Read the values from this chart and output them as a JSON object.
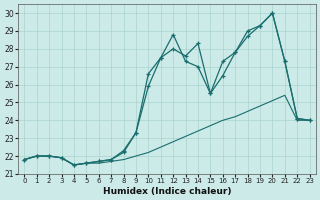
{
  "xlabel": "Humidex (Indice chaleur)",
  "background_color": "#cceae7",
  "grid_color": "#aad4d0",
  "line_color": "#1a6e6e",
  "xlim": [
    -0.5,
    23.5
  ],
  "ylim": [
    21.0,
    30.5
  ],
  "xticks": [
    0,
    1,
    2,
    3,
    4,
    5,
    6,
    7,
    8,
    9,
    10,
    11,
    12,
    13,
    14,
    15,
    16,
    17,
    18,
    19,
    20,
    21,
    22,
    23
  ],
  "yticks": [
    21,
    22,
    23,
    24,
    25,
    26,
    27,
    28,
    29,
    30
  ],
  "series1_x": [
    0,
    1,
    2,
    3,
    4,
    5,
    6,
    7,
    8,
    9,
    10,
    11,
    12,
    13,
    14,
    15,
    16,
    17,
    18,
    19,
    20,
    21,
    22,
    23
  ],
  "series1_y": [
    21.8,
    22.0,
    22.0,
    21.9,
    21.5,
    21.6,
    21.7,
    21.8,
    22.2,
    23.3,
    25.9,
    27.5,
    28.8,
    27.3,
    27.0,
    25.5,
    27.3,
    27.8,
    28.7,
    29.3,
    30.0,
    27.3,
    24.1,
    24.0
  ],
  "series2_x": [
    0,
    1,
    2,
    3,
    4,
    5,
    6,
    7,
    8,
    9,
    10,
    11,
    12,
    13,
    14,
    15,
    16,
    17,
    18,
    19,
    20,
    21,
    22,
    23
  ],
  "series2_y": [
    21.8,
    22.0,
    22.0,
    21.9,
    21.5,
    21.6,
    21.7,
    21.8,
    22.3,
    23.3,
    26.6,
    27.5,
    28.0,
    27.6,
    28.3,
    25.5,
    26.5,
    27.8,
    29.0,
    29.3,
    30.0,
    27.3,
    24.1,
    24.0
  ],
  "series3_x": [
    0,
    1,
    2,
    3,
    4,
    5,
    6,
    7,
    8,
    9,
    10,
    11,
    12,
    13,
    14,
    15,
    16,
    17,
    18,
    19,
    20,
    21,
    22,
    23
  ],
  "series3_y": [
    21.8,
    22.0,
    22.0,
    21.9,
    21.5,
    21.6,
    21.6,
    21.7,
    21.8,
    22.0,
    22.2,
    22.5,
    22.8,
    23.1,
    23.4,
    23.7,
    24.0,
    24.2,
    24.5,
    24.8,
    25.1,
    25.4,
    24.0,
    24.0
  ]
}
